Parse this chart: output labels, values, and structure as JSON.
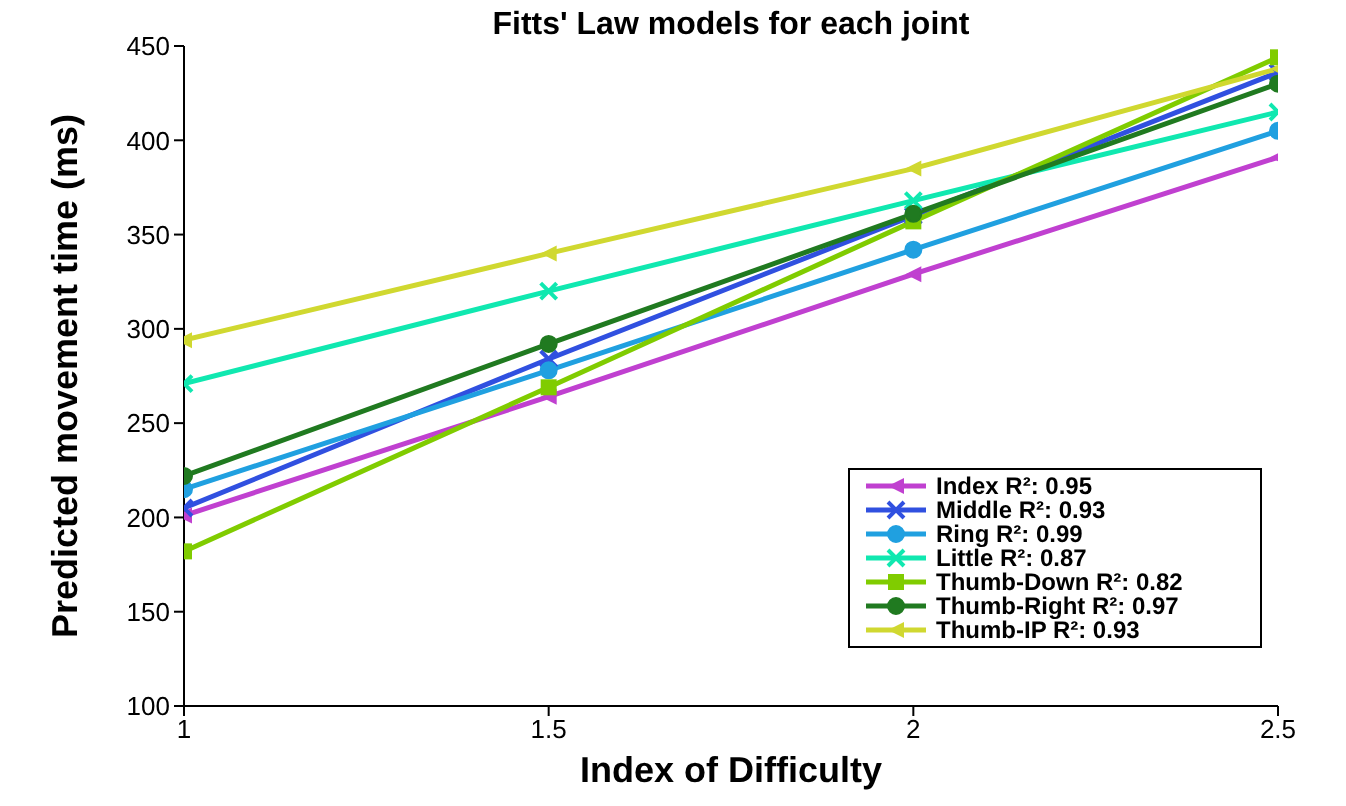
{
  "chart_data": {
    "type": "line",
    "title": "Fitts' Law models for each joint",
    "xlabel": "Index of Difficulty",
    "ylabel": "Predicted movement time (ms)",
    "x": [
      1,
      1.5,
      2,
      2.5
    ],
    "xlim": [
      1,
      2.5
    ],
    "xticks": [
      1,
      1.5,
      2,
      2.5
    ],
    "ylim": [
      100,
      450
    ],
    "yticks": [
      100,
      150,
      200,
      250,
      300,
      350,
      400,
      450
    ],
    "legend": "bottom right",
    "series": [
      {
        "name": "Index R²: 0.95",
        "color": "#c040d0",
        "marker": "triangle",
        "values": [
          201,
          264,
          329,
          391
        ]
      },
      {
        "name": "Middle R²: 0.93",
        "color": "#3050e0",
        "marker": "cross",
        "values": [
          205,
          284,
          360,
          436
        ]
      },
      {
        "name": "Ring R²: 0.99",
        "color": "#20a0e0",
        "marker": "circle",
        "values": [
          215,
          278,
          342,
          405
        ]
      },
      {
        "name": "Little R²: 0.87",
        "color": "#10e8b0",
        "marker": "cross",
        "values": [
          271,
          320,
          368,
          415
        ]
      },
      {
        "name": "Thumb-Down R²: 0.82",
        "color": "#80cc00",
        "marker": "square",
        "values": [
          182,
          269,
          357,
          444
        ]
      },
      {
        "name": "Thumb-Right R²: 0.97",
        "color": "#207a20",
        "marker": "circle",
        "values": [
          222,
          292,
          361,
          430
        ]
      },
      {
        "name": "Thumb-IP R²: 0.93",
        "color": "#d0d830",
        "marker": "triangle",
        "values": [
          294,
          340,
          385,
          438
        ]
      }
    ]
  }
}
